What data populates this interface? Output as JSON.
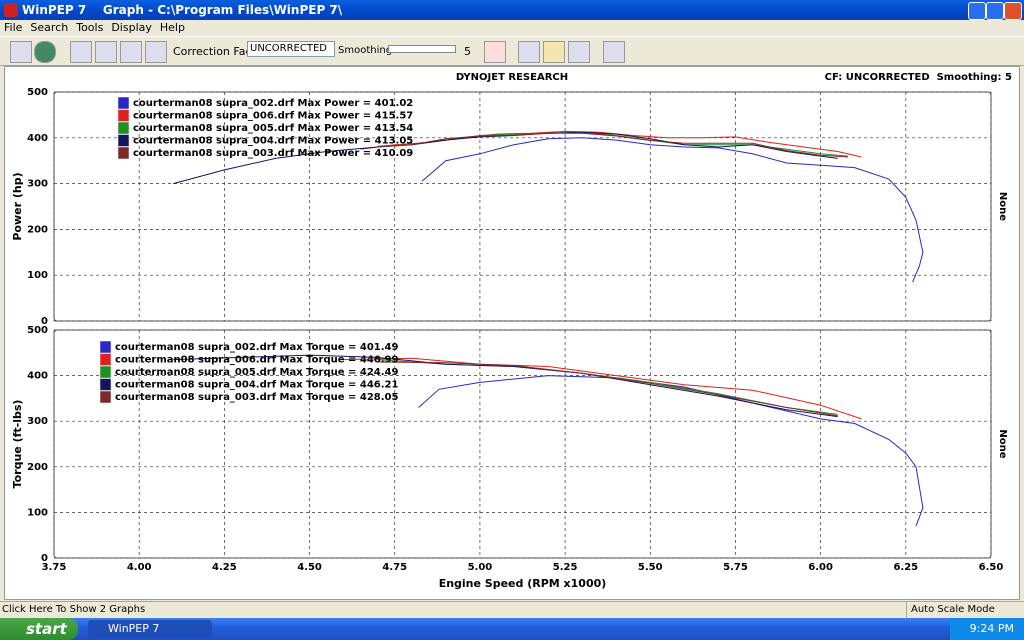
{
  "window": {
    "title": "WinPEP 7    Graph - C:\\Program Files\\WinPEP 7\\"
  },
  "menu": [
    "File",
    "Search",
    "Tools",
    "Display",
    "Help"
  ],
  "toolbar": {
    "correction_label": "Correction Factor:",
    "correction_value": "UNCORRECTED",
    "smoothing_label": "Smoothing:",
    "smoothing_value": "5"
  },
  "graph_header": {
    "title": "DYNOJET RESEARCH",
    "info": "CF: UNCORRECTED  Smoothing: 5"
  },
  "chart_data": [
    {
      "type": "line",
      "ylabel": "Power (hp)",
      "right_label": "None",
      "xlim": [
        3.75,
        6.5
      ],
      "ylim": [
        0,
        500
      ],
      "xticks": [
        3.75,
        4,
        4.25,
        4.5,
        4.75,
        5,
        5.25,
        5.5,
        5.75,
        6,
        6.25,
        6.5
      ],
      "yticks": [
        0,
        100,
        200,
        300,
        400,
        500
      ],
      "grid": true,
      "series": [
        {
          "name": "courterman08 supra_002.drf Max Power = 401.02",
          "color": "#2828c8",
          "x": [
            4.83,
            4.9,
            5.0,
            5.1,
            5.2,
            5.3,
            5.4,
            5.5,
            5.6,
            5.7,
            5.8,
            5.9,
            6.0,
            6.1,
            6.2,
            6.25,
            6.28,
            6.3,
            6.29,
            6.27
          ],
          "values": [
            305,
            350,
            365,
            385,
            398,
            400,
            395,
            385,
            380,
            378,
            365,
            345,
            340,
            335,
            310,
            270,
            220,
            150,
            120,
            85
          ]
        },
        {
          "name": "courterman08 supra_006.drf Max Power = 415.57",
          "color": "#e02020",
          "x": [
            4.65,
            4.75,
            4.85,
            4.95,
            5.05,
            5.15,
            5.25,
            5.35,
            5.45,
            5.55,
            5.65,
            5.75,
            5.85,
            5.95,
            6.05,
            6.12
          ],
          "values": [
            375,
            385,
            390,
            400,
            408,
            410,
            414,
            412,
            405,
            400,
            400,
            402,
            390,
            380,
            370,
            358
          ]
        },
        {
          "name": "courterman08 supra_005.drf Max Power = 413.54",
          "color": "#209020",
          "x": [
            4.7,
            4.8,
            4.9,
            5.0,
            5.1,
            5.2,
            5.3,
            5.4,
            5.5,
            5.6,
            5.7,
            5.8,
            5.9,
            6.0,
            6.08
          ],
          "values": [
            382,
            385,
            395,
            405,
            408,
            410,
            412,
            405,
            395,
            385,
            385,
            385,
            375,
            365,
            360
          ]
        },
        {
          "name": "courterman08 supra_004.drf Max Power = 413.05",
          "color": "#141460",
          "x": [
            4.1,
            4.25,
            4.4,
            4.55,
            4.7,
            4.8,
            4.9,
            5.0,
            5.1,
            5.2,
            5.3,
            5.4,
            5.5,
            5.6,
            5.7,
            5.8,
            5.9,
            6.0,
            6.05
          ],
          "values": [
            300,
            330,
            355,
            370,
            380,
            385,
            395,
            402,
            405,
            410,
            412,
            408,
            398,
            385,
            380,
            385,
            370,
            360,
            355
          ]
        },
        {
          "name": "courterman08 supra_003.drf Max Power = 410.09",
          "color": "#802828",
          "x": [
            4.7,
            4.8,
            4.9,
            5.0,
            5.1,
            5.2,
            5.3,
            5.4,
            5.5,
            5.6,
            5.7,
            5.8,
            5.9,
            6.0,
            6.08
          ],
          "values": [
            380,
            385,
            398,
            404,
            406,
            410,
            410,
            404,
            394,
            388,
            388,
            388,
            372,
            362,
            358
          ]
        }
      ]
    },
    {
      "type": "line",
      "ylabel": "Torque (ft-lbs)",
      "xlabel": "Engine Speed (RPM x1000)",
      "right_label": "None",
      "xlim": [
        3.75,
        6.5
      ],
      "ylim": [
        0,
        500
      ],
      "xticks": [
        3.75,
        {
          "value": 4,
          "label": "4.00"
        },
        4.25,
        {
          "value": 4.5,
          "label": "4.50"
        },
        4.75,
        {
          "value": 5,
          "label": "5.00"
        },
        5.25,
        {
          "value": 5.5,
          "label": "5.50"
        },
        5.75,
        {
          "value": 6,
          "label": "6.00"
        },
        6.25,
        {
          "value": 6.5,
          "label": "6.50"
        }
      ],
      "yticks": [
        0,
        100,
        200,
        300,
        400,
        500
      ],
      "grid": true,
      "series": [
        {
          "name": "courterman08 supra_002.drf Max Torque = 401.49",
          "color": "#2828c8",
          "x": [
            4.82,
            4.88,
            5.0,
            5.2,
            5.4,
            5.6,
            5.8,
            6.0,
            6.1,
            6.2,
            6.25,
            6.28,
            6.3,
            6.28
          ],
          "values": [
            330,
            370,
            385,
            400,
            395,
            375,
            340,
            305,
            295,
            260,
            230,
            200,
            110,
            70
          ]
        },
        {
          "name": "courterman08 supra_006.drf Max Torque = 446.99",
          "color": "#e02020",
          "x": [
            4.6,
            4.8,
            5.0,
            5.2,
            5.4,
            5.6,
            5.8,
            6.0,
            6.12
          ],
          "values": [
            435,
            438,
            425,
            420,
            400,
            380,
            368,
            335,
            305
          ]
        },
        {
          "name": "courterman08 supra_005.drf Max Torque = 424.49",
          "color": "#209020",
          "x": [
            4.7,
            4.9,
            5.1,
            5.3,
            5.5,
            5.7,
            5.9,
            6.05
          ],
          "values": [
            435,
            425,
            420,
            405,
            385,
            360,
            330,
            315
          ]
        },
        {
          "name": "courterman08 supra_004.drf Max Torque = 446.21",
          "color": "#141460",
          "x": [
            4.1,
            4.3,
            4.5,
            4.7,
            4.9,
            5.1,
            5.3,
            5.5,
            5.7,
            5.9,
            6.05
          ],
          "values": [
            435,
            440,
            445,
            440,
            425,
            420,
            405,
            380,
            355,
            325,
            310
          ]
        },
        {
          "name": "courterman08 supra_003.drf Max Torque = 428.05",
          "color": "#802828",
          "x": [
            4.7,
            4.9,
            5.1,
            5.3,
            5.5,
            5.7,
            5.9,
            6.05
          ],
          "values": [
            430,
            428,
            422,
            405,
            383,
            358,
            330,
            312
          ]
        }
      ]
    }
  ],
  "status": {
    "left": "Click Here To Show 2 Graphs",
    "right": "Auto Scale Mode"
  },
  "taskbar": {
    "start": "start",
    "task": "WinPEP 7",
    "clock": "9:24 PM"
  }
}
